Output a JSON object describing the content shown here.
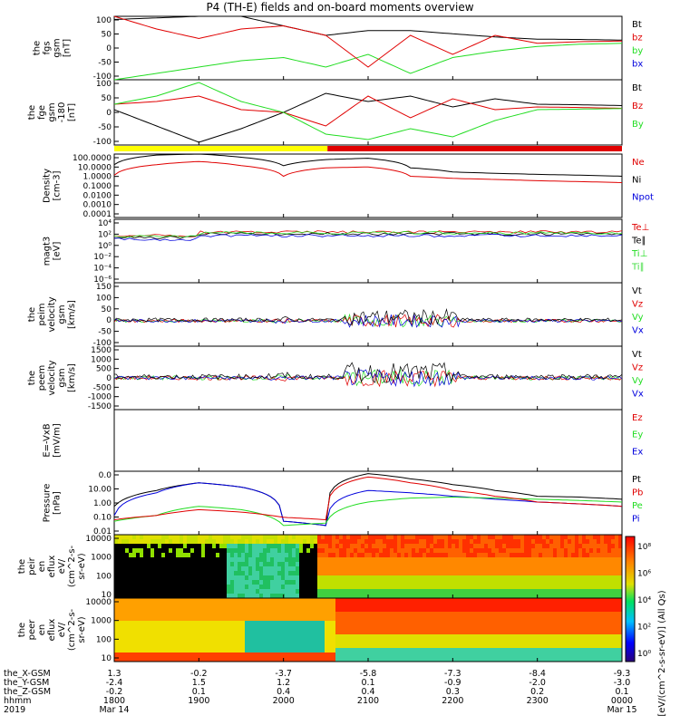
{
  "title": "P4 (TH-E) fields and on-board moments overview",
  "colors": {
    "black": "#000000",
    "red": "#e00000",
    "green": "#22dd22",
    "blue": "#0000dd",
    "yellow": "#ffff00",
    "lightgreen": "#44dd44"
  },
  "panels": [
    {
      "id": "fgs",
      "ylabel": [
        "the",
        "fgs",
        "gsm",
        "[nT]"
      ],
      "ticks": [
        "100",
        "50",
        "0",
        "-50",
        "-100"
      ],
      "ylim": [
        -100,
        100
      ],
      "legend": [
        {
          "text": "Bt",
          "color": "black"
        },
        {
          "text": "bz",
          "color": "red"
        },
        {
          "text": "by",
          "color": "green"
        },
        {
          "text": "bx",
          "color": "blue"
        }
      ]
    },
    {
      "id": "fge",
      "ylabel": [
        "the",
        "fge",
        "gsm",
        "-180",
        "[nT]"
      ],
      "ticks": [
        "100",
        "50",
        "0",
        "-50",
        "-100"
      ],
      "ylim": [
        -120,
        120
      ],
      "legend": [
        {
          "text": "Bt",
          "color": "black"
        },
        {
          "text": "Bz",
          "color": "red"
        },
        {
          "text": "By",
          "color": "green"
        }
      ]
    },
    {
      "id": "density",
      "ylabel": [
        "Density",
        "[cm-3]"
      ],
      "ticks": [
        "100.0000",
        "10.0000",
        "1.0000",
        "0.1000",
        "0.0100",
        "0.0010",
        "0.0001"
      ],
      "log": true,
      "legend": [
        {
          "text": "Ne",
          "color": "red"
        },
        {
          "text": "Ni",
          "color": "black"
        },
        {
          "text": "Npot",
          "color": "blue"
        }
      ]
    },
    {
      "id": "temp",
      "ylabel": [
        "magt3",
        "[eV]"
      ],
      "ticks": [
        "10⁴",
        "10²",
        "10⁰",
        "10⁻²",
        "10⁻⁴",
        "10⁻⁶"
      ],
      "log": true,
      "legend": [
        {
          "text": "Te⊥",
          "color": "red"
        },
        {
          "text": "Te∥",
          "color": "black"
        },
        {
          "text": "Ti⊥",
          "color": "green"
        },
        {
          "text": "Ti∥",
          "color": "lightgreen"
        }
      ]
    },
    {
      "id": "peim",
      "ylabel": [
        "the",
        "peim",
        "velocity",
        "gsm",
        "[km/s]"
      ],
      "ticks": [
        "150",
        "100",
        "50",
        "0",
        "-50",
        "-100"
      ],
      "ylim": [
        -100,
        150
      ],
      "legend": [
        {
          "text": "Vt",
          "color": "black"
        },
        {
          "text": "Vz",
          "color": "red"
        },
        {
          "text": "Vy",
          "color": "green"
        },
        {
          "text": "Vx",
          "color": "blue"
        }
      ]
    },
    {
      "id": "peem",
      "ylabel": [
        "the",
        "peem",
        "velocity",
        "gsm",
        "[km/s]"
      ],
      "ticks": [
        "1500",
        "1000",
        "500",
        "0",
        "-500",
        "-1000",
        "-1500"
      ],
      "ylim": [
        -1500,
        1500
      ],
      "legend": [
        {
          "text": "Vt",
          "color": "black"
        },
        {
          "text": "Vz",
          "color": "red"
        },
        {
          "text": "Vy",
          "color": "green"
        },
        {
          "text": "Vx",
          "color": "blue"
        }
      ]
    },
    {
      "id": "efield",
      "ylabel": [
        "E=-VxB",
        "[mV/m]"
      ],
      "ticks": [],
      "legend": [
        {
          "text": "Ez",
          "color": "red"
        },
        {
          "text": "Ey",
          "color": "green"
        },
        {
          "text": "Ex",
          "color": "blue"
        }
      ]
    },
    {
      "id": "pressure",
      "ylabel": [
        "Pressure",
        "[nPa]"
      ],
      "ticks": [
        "0.0",
        "10.00",
        "1.00",
        "0.10",
        "0.01"
      ],
      "log": true,
      "legend": [
        {
          "text": "Pt",
          "color": "black"
        },
        {
          "text": "Pb",
          "color": "red"
        },
        {
          "text": "Pe",
          "color": "green"
        },
        {
          "text": "Pi",
          "color": "blue"
        }
      ]
    },
    {
      "id": "peir",
      "ylabel": [
        "the",
        "peir",
        "en",
        "eflux",
        "eV/",
        "(cm^2-s-",
        "sr-eV)"
      ],
      "ticks": [
        "10000",
        "1000",
        "100",
        "10"
      ],
      "spectro": true,
      "legend": []
    },
    {
      "id": "peer",
      "ylabel": [
        "the",
        "peer",
        "en",
        "eflux",
        "eV/",
        "(cm^2-s-",
        "sr-eV)"
      ],
      "ticks": [
        "10000",
        "1000",
        "100",
        "10"
      ],
      "spectro": true,
      "legend": []
    }
  ],
  "colorbar": {
    "ticks": [
      "10⁸",
      "10⁶",
      "10⁴",
      "10²",
      "10⁰"
    ],
    "label": "[eV/(cm^2-s-sr-eV)] (All Qs)"
  },
  "footer": {
    "row_labels": [
      "the_X-GSM",
      "the_Y-GSM",
      "the_Z-GSM",
      "hhmm",
      "2019"
    ],
    "columns": [
      [
        "1.3",
        "-2.4",
        "-0.2",
        "1800",
        "Mar 14"
      ],
      [
        "-0.2",
        "1.5",
        "0.1",
        "1900",
        ""
      ],
      [
        "-3.7",
        "1.2",
        "0.4",
        "2000",
        ""
      ],
      [
        "-5.8",
        "0.1",
        "0.4",
        "2100",
        ""
      ],
      [
        "-7.3",
        "-0.9",
        "0.3",
        "2200",
        ""
      ],
      [
        "-8.4",
        "-2.0",
        "0.2",
        "2300",
        ""
      ],
      [
        "-9.3",
        "-3.0",
        "0.1",
        "0000",
        "Mar 15"
      ]
    ]
  },
  "chart_data": {
    "type": "line",
    "title": "P4 (TH-E) fields and on-board moments overview",
    "x_ticks": [
      "1800",
      "1900",
      "2000",
      "2100",
      "2200",
      "2300",
      "0000"
    ],
    "x": [
      0,
      0.5,
      1,
      1.5,
      2,
      2.5,
      3,
      3.5,
      4,
      4.5,
      5,
      5.5,
      6
    ],
    "series": [
      {
        "name": "Bt",
        "panel": "fgs",
        "values": [
          90,
          95,
          100,
          100,
          70,
          40,
          55,
          55,
          45,
          35,
          28,
          27,
          25
        ]
      },
      {
        "name": "by",
        "panel": "fgs",
        "values": [
          -100,
          -80,
          -60,
          -40,
          -30,
          -60,
          -20,
          -80,
          -30,
          -10,
          5,
          12,
          15
        ]
      },
      {
        "name": "bz",
        "panel": "fgs",
        "values": [
          100,
          60,
          30,
          60,
          70,
          40,
          -60,
          40,
          -20,
          40,
          15,
          20,
          22
        ]
      },
      {
        "name": "Bt",
        "panel": "fge",
        "values": [
          10,
          -50,
          -110,
          -60,
          0,
          70,
          40,
          60,
          20,
          50,
          30,
          28,
          25
        ]
      },
      {
        "name": "Bz",
        "panel": "fge",
        "values": [
          30,
          40,
          60,
          10,
          0,
          -50,
          60,
          -20,
          50,
          10,
          20,
          18,
          15
        ]
      },
      {
        "name": "By",
        "panel": "fge",
        "values": [
          30,
          60,
          110,
          40,
          0,
          -80,
          -100,
          -60,
          -90,
          -30,
          10,
          12,
          14
        ]
      },
      {
        "name": "Ni",
        "panel": "density",
        "values": [
          10,
          80,
          100,
          50,
          8,
          30,
          40,
          5,
          2,
          1.5,
          1.2,
          1,
          0.8
        ]
      },
      {
        "name": "Ne",
        "panel": "density",
        "values": [
          1,
          10,
          20,
          8,
          0.8,
          5,
          6,
          0.8,
          0.5,
          0.4,
          0.3,
          0.25,
          0.2
        ]
      },
      {
        "name": "Pt",
        "panel": "pressure",
        "values": [
          0.3,
          2,
          5,
          3,
          0.05,
          0.03,
          15,
          8,
          4,
          2,
          1,
          0.9,
          0.7
        ]
      },
      {
        "name": "Pi",
        "panel": "pressure",
        "values": [
          0.1,
          1.5,
          5,
          3,
          0.05,
          0.03,
          2,
          1.5,
          1,
          0.7,
          0.5,
          0.4,
          0.3
        ]
      },
      {
        "name": "Pe",
        "panel": "pressure",
        "values": [
          0.05,
          0.1,
          0.3,
          0.2,
          0.03,
          0.04,
          0.5,
          0.8,
          0.9,
          0.8,
          0.7,
          0.6,
          0.5
        ]
      },
      {
        "name": "Pb",
        "panel": "pressure",
        "values": [
          0.06,
          0.1,
          0.2,
          0.15,
          0.08,
          0.06,
          10,
          5,
          2,
          1,
          0.5,
          0.4,
          0.3
        ]
      }
    ]
  }
}
